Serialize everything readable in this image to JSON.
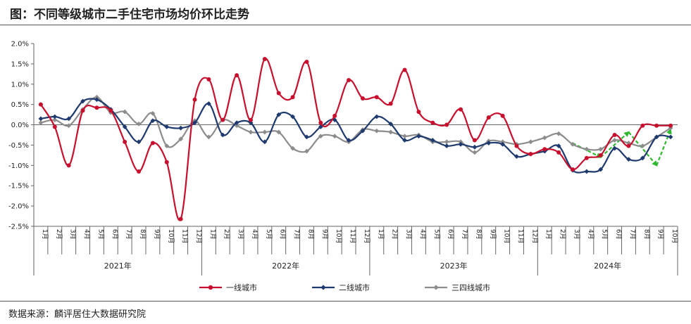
{
  "title": "图：不同等级城市二手住宅市场均价环比走势",
  "source": "数据来源：麟评居住大数据研究院",
  "colors": {
    "s1": "#C8102E",
    "s2": "#1F3A6E",
    "s3": "#8C8C8C",
    "arrow": "#2EB82E",
    "axis": "#666666",
    "grid": "#cccccc"
  },
  "chart_data": {
    "type": "line",
    "title": "不同等级城市二手住宅市场均价环比走势",
    "ylabel": "",
    "xlabel": "",
    "ylim": [
      -2.5,
      2.0
    ],
    "yticks": [
      2.0,
      1.5,
      1.0,
      0.5,
      0.0,
      -0.5,
      -1.0,
      -1.5,
      -2.0,
      -2.5
    ],
    "ytick_labels": [
      "2.0%",
      "1.5%",
      "1.0%",
      "0.5%",
      "0.0%",
      "-0.5%",
      "-1.0%",
      "-1.5%",
      "-2.0%",
      "-2.5%"
    ],
    "years": [
      {
        "label": "2021年",
        "months": [
          "1月",
          "2月",
          "3月",
          "4月",
          "5月",
          "6月",
          "7月",
          "8月",
          "9月",
          "10月",
          "11月",
          "12月"
        ]
      },
      {
        "label": "2022年",
        "months": [
          "1月",
          "2月",
          "3月",
          "4月",
          "5月",
          "6月",
          "7月",
          "8月",
          "9月",
          "10月",
          "11月",
          "12月"
        ]
      },
      {
        "label": "2023年",
        "months": [
          "1月",
          "2月",
          "3月",
          "4月",
          "5月",
          "6月",
          "7月",
          "8月",
          "9月",
          "10月",
          "11月",
          "12月"
        ]
      },
      {
        "label": "2024年",
        "months": [
          "1月",
          "2月",
          "3月",
          "4月",
          "5月",
          "6月",
          "7月",
          "8月",
          "9月",
          "10月"
        ]
      }
    ],
    "legend_position": "bottom",
    "series": [
      {
        "name": "一线城市",
        "color_key": "s1",
        "marker": "circle",
        "values": [
          0.5,
          -0.05,
          -1.0,
          0.35,
          0.42,
          0.35,
          -0.42,
          -1.15,
          -0.45,
          -0.92,
          -2.32,
          0.62,
          1.12,
          0.12,
          1.22,
          0.12,
          1.62,
          0.78,
          0.68,
          1.55,
          0.05,
          0.22,
          1.1,
          0.65,
          0.68,
          0.52,
          1.35,
          0.32,
          0.05,
          0.0,
          0.38,
          -0.38,
          0.18,
          0.22,
          -0.52,
          -0.72,
          -0.6,
          -0.68,
          -1.1,
          -0.82,
          -0.75,
          -0.25,
          -0.52,
          -0.02,
          -0.02,
          -0.02
        ]
      },
      {
        "name": "二线城市",
        "color_key": "s2",
        "marker": "diamond",
        "values": [
          0.15,
          0.2,
          0.15,
          0.58,
          0.62,
          0.38,
          -0.05,
          -0.42,
          0.1,
          -0.05,
          -0.08,
          0.05,
          0.52,
          -0.25,
          0.05,
          0.05,
          -0.42,
          0.25,
          0.2,
          -0.3,
          -0.05,
          0.12,
          -0.38,
          -0.15,
          0.2,
          0.02,
          -0.38,
          -0.28,
          -0.38,
          -0.52,
          -0.48,
          -0.55,
          -0.45,
          -0.48,
          -0.78,
          -0.72,
          -0.65,
          -0.52,
          -1.12,
          -1.15,
          -1.1,
          -0.58,
          -0.85,
          -0.82,
          -0.3,
          -0.3
        ]
      },
      {
        "name": "三四线城市",
        "color_key": "s3",
        "marker": "diamond",
        "values": [
          0.05,
          0.12,
          -0.02,
          0.38,
          0.68,
          0.3,
          0.32,
          0.02,
          0.28,
          -0.52,
          -0.35,
          0.1,
          -0.3,
          0.12,
          -0.02,
          -0.18,
          -0.18,
          -0.18,
          -0.58,
          -0.65,
          -0.28,
          -0.28,
          -0.42,
          -0.12,
          -0.15,
          -0.18,
          -0.28,
          -0.25,
          -0.42,
          -0.42,
          -0.42,
          -0.68,
          -0.4,
          -0.42,
          -0.48,
          -0.42,
          -0.32,
          -0.22,
          -0.48,
          -0.6,
          -0.6,
          -0.38,
          -0.45,
          -0.52,
          -0.3,
          -0.08
        ]
      }
    ],
    "annotations": [
      {
        "type": "arrow",
        "from_index": 38,
        "from_value": -0.45,
        "to_index": 40,
        "to_value": -0.8
      },
      {
        "type": "arrow",
        "from_index": 40,
        "from_value": -0.8,
        "to_index": 42,
        "to_value": -0.18
      },
      {
        "type": "arrow",
        "from_index": 42,
        "from_value": -0.18,
        "to_index": 44,
        "to_value": -1.0
      },
      {
        "type": "arrow",
        "from_index": 44,
        "from_value": -1.0,
        "to_index": 45,
        "to_value": -0.12
      }
    ]
  }
}
